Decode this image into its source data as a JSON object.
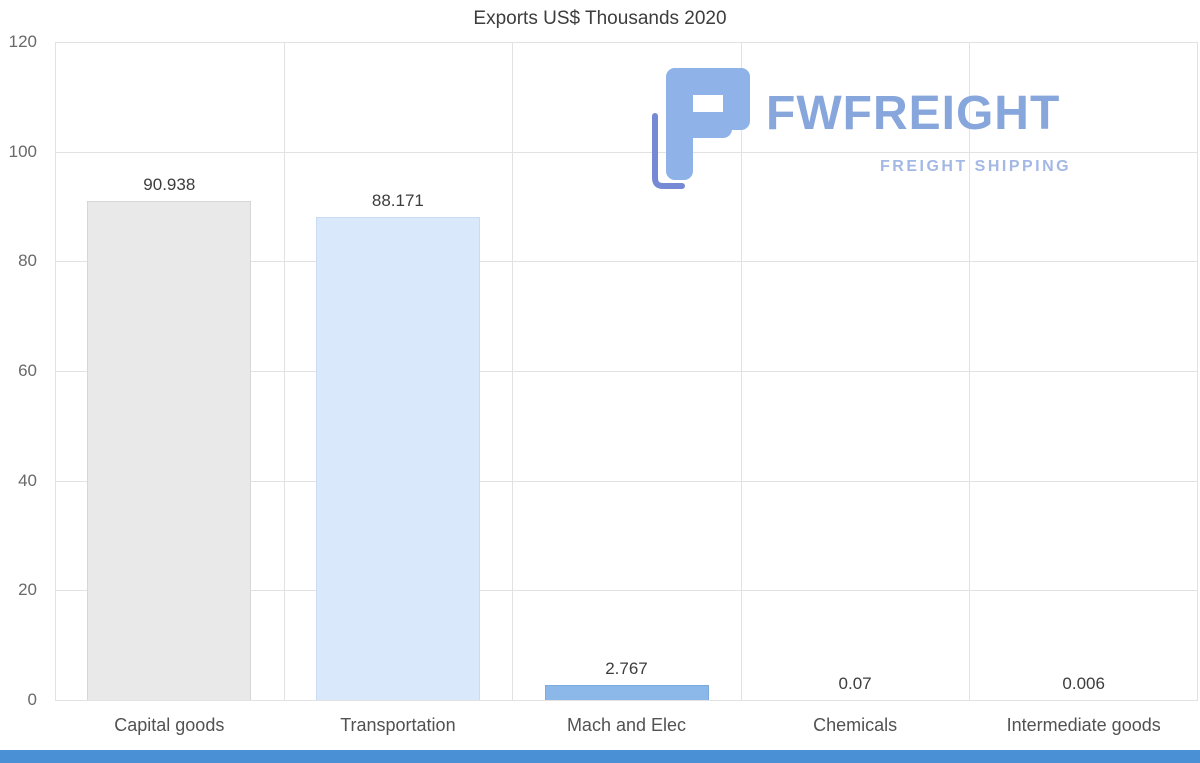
{
  "chart_data": {
    "type": "bar",
    "title": "Exports US$ Thousands 2020",
    "categories": [
      "Capital goods",
      "Transportation",
      "Mach and Elec",
      "Chemicals",
      "Intermediate goods"
    ],
    "values": [
      90.938,
      88.171,
      2.767,
      0.07,
      0.006
    ],
    "value_labels": [
      "90.938",
      "88.171",
      "2.767",
      "0.07",
      "0.006"
    ],
    "bar_colors": [
      "#e9e9e9",
      "#d9e8fa",
      "#8cb8e9",
      "#8cb8e9",
      "#8cb8e9"
    ],
    "bar_border_colors": [
      "#d6d6d6",
      "#c8dcf4",
      "#7caade",
      "#7caade",
      "#7caade"
    ],
    "xlabel": "",
    "ylabel": "",
    "ylim": [
      0,
      120
    ],
    "yticks": [
      0,
      20,
      40,
      60,
      80,
      100,
      120
    ],
    "grid": true,
    "legend": "none",
    "grid_color": "#e2e2e2"
  },
  "logo": {
    "brand": "FWFREIGHT",
    "tagline": "FREIGHT SHIPPING",
    "brand_color": "#87a6dc",
    "tagline_color": "#a3b8e5",
    "icon_light_color": "#8fb3e8",
    "icon_dark_color": "#7589d4"
  },
  "footer": {
    "color": "#4a90d4"
  }
}
